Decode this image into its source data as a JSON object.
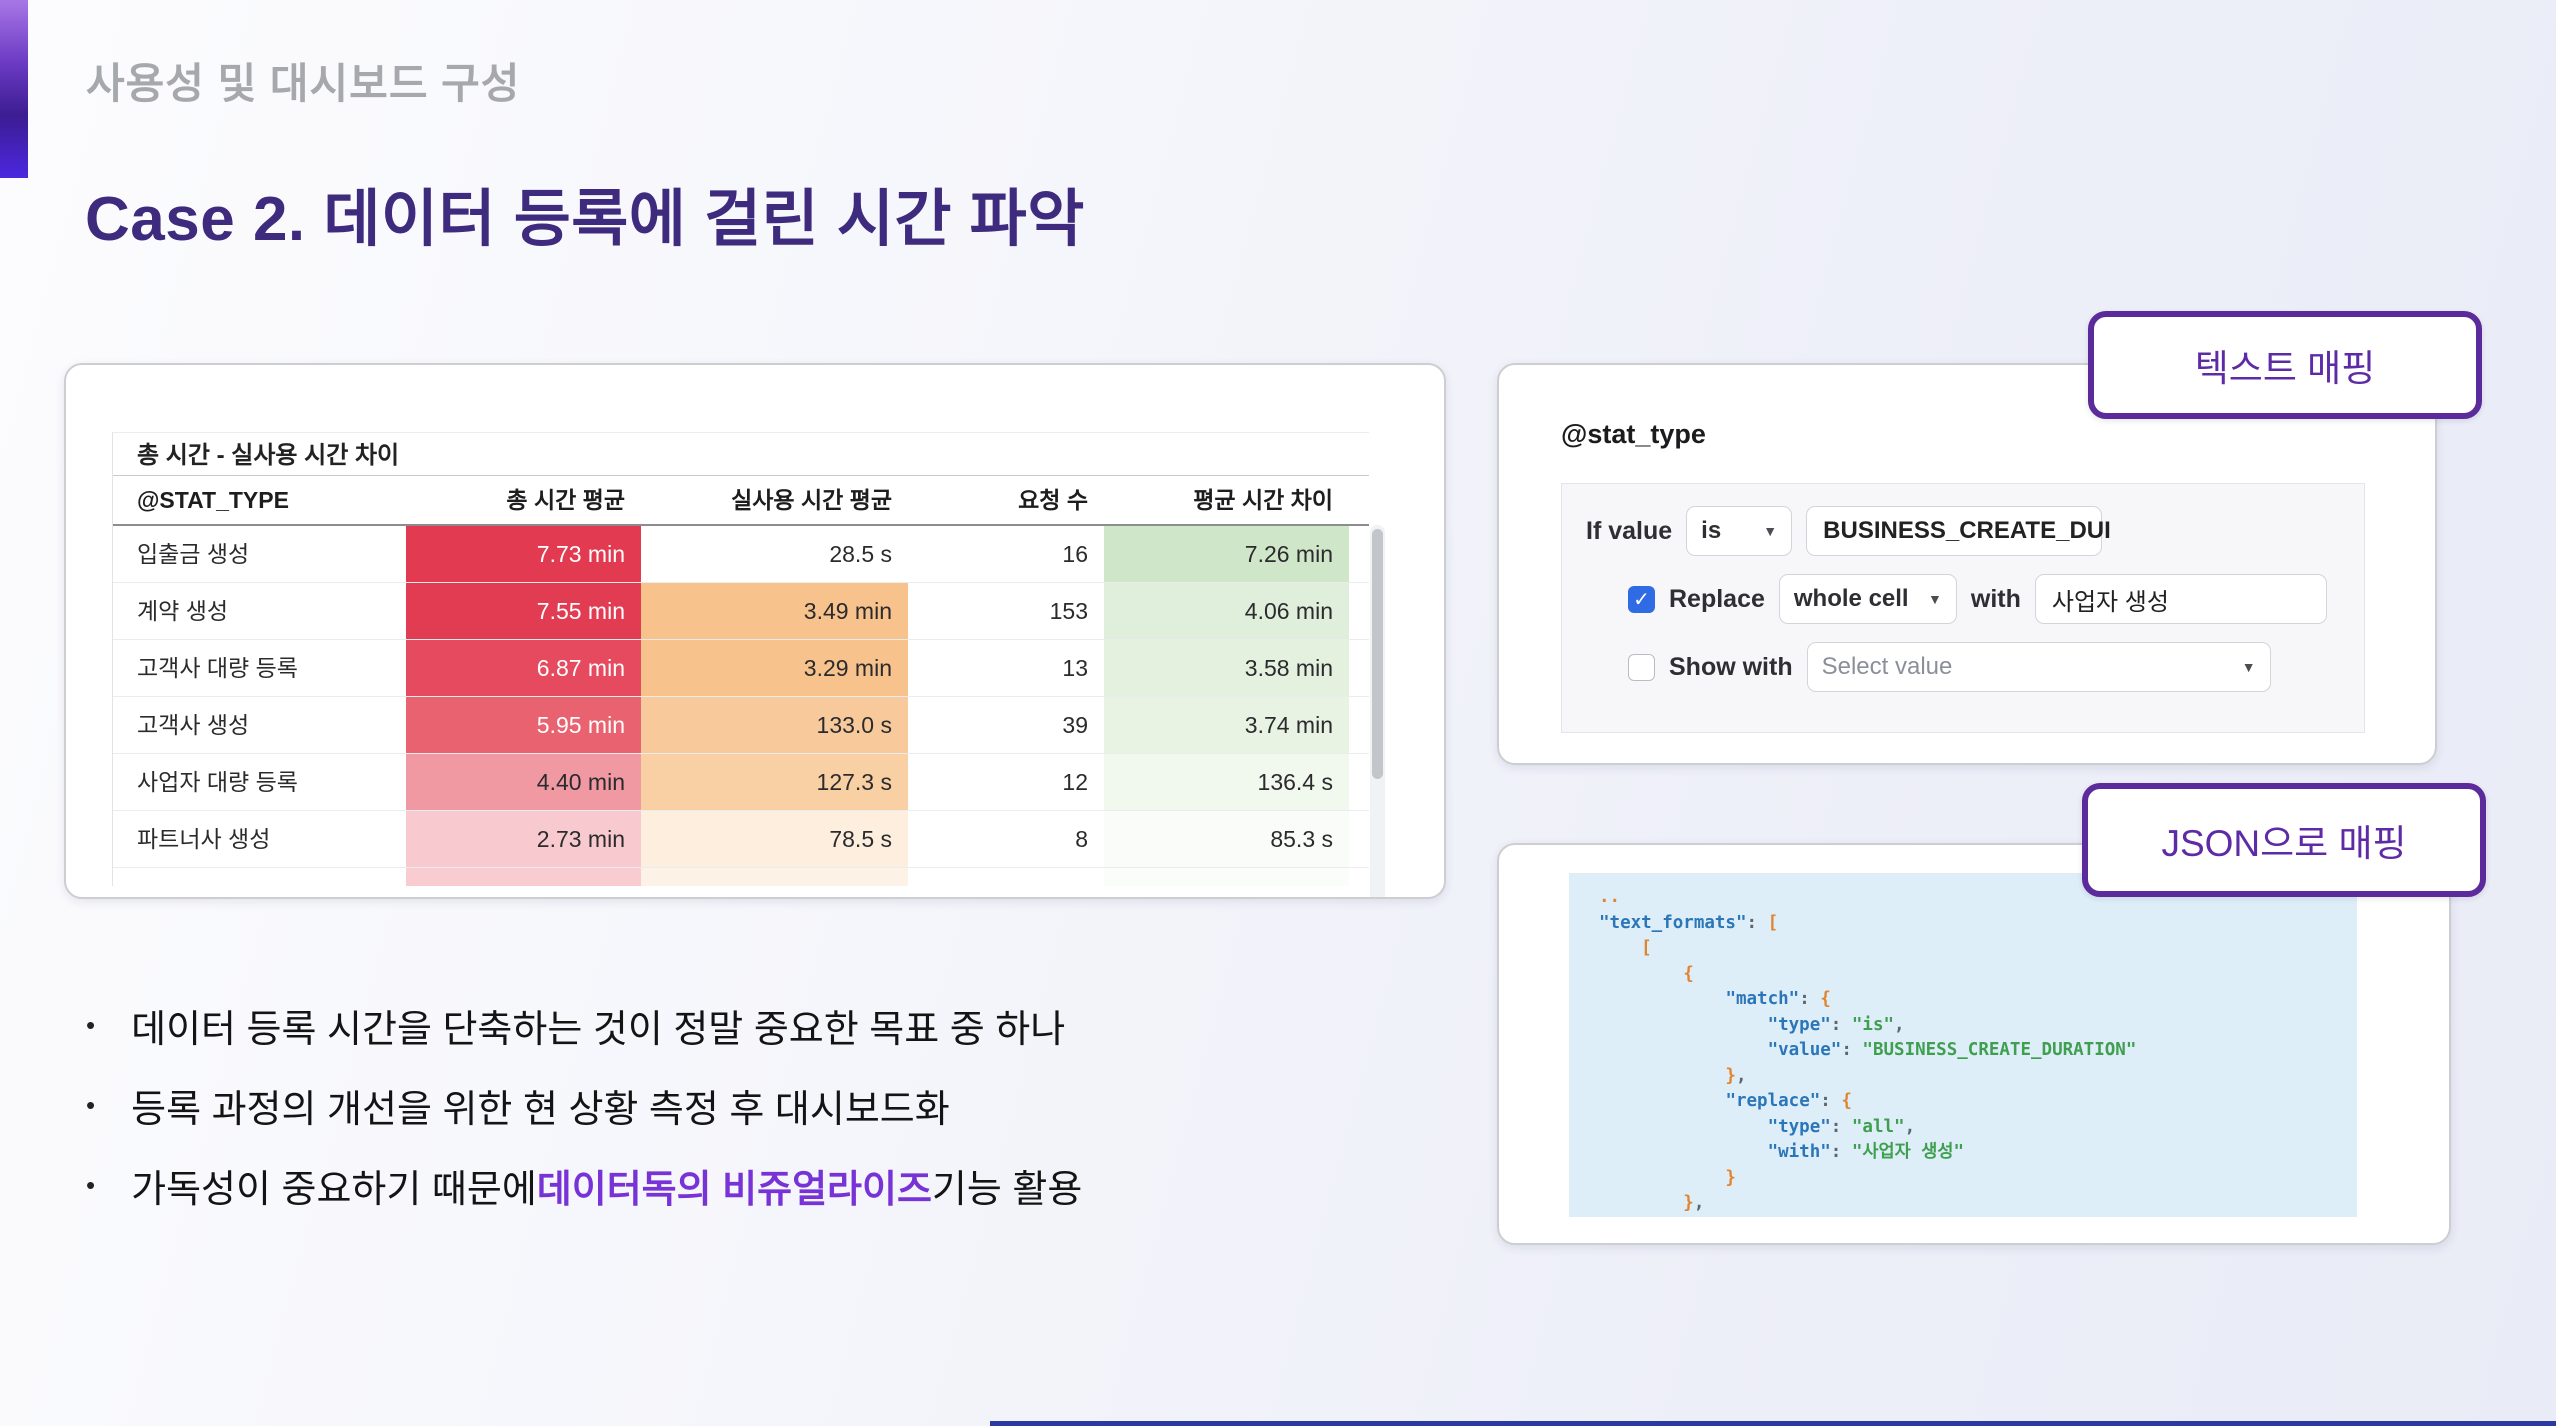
{
  "colors": {
    "accent": "#5b2a9b",
    "title": "#3e2b7e",
    "highlight": "#7733d6",
    "checkbox": "#2f6be4",
    "code_bg": "#ddeef8",
    "heat_red": "#e23a51",
    "heat_orange": "#f7c28c",
    "heat_green": "#cfe6c8"
  },
  "slide": {
    "eyebrow": "사용성 및 대시보드 구성",
    "title": "Case 2. 데이터 등록에 걸린 시간 파악"
  },
  "table_widget": {
    "title": "총 시간 - 실사용 시간 차이",
    "columns": [
      "@STAT_TYPE",
      "총 시간 평균",
      "실사용 시간 평균",
      "요청 수",
      "평균 시간 차이"
    ],
    "rows": [
      {
        "label": "입출금 생성",
        "total": "7.73 min",
        "total_bg": "#e23a51",
        "total_fg": "#ffffff",
        "actual": "28.5 s",
        "actual_bg": "#ffffff",
        "requests": "16",
        "diff": "7.26 min",
        "diff_bg": "#cfe6c8"
      },
      {
        "label": "계약 생성",
        "total": "7.55 min",
        "total_bg": "#e23c53",
        "total_fg": "#ffffff",
        "actual": "3.49 min",
        "actual_bg": "#f7c28c",
        "requests": "153",
        "diff": "4.06 min",
        "diff_bg": "#e0efdb"
      },
      {
        "label": "고객사 대량 등록",
        "total": "6.87 min",
        "total_bg": "#e54a5e",
        "total_fg": "#ffffff",
        "actual": "3.29 min",
        "actual_bg": "#f7c28c",
        "requests": "13",
        "diff": "3.58 min",
        "diff_bg": "#e4f1df"
      },
      {
        "label": "고객사 생성",
        "total": "5.95 min",
        "total_bg": "#e8636f",
        "total_fg": "#ffffff",
        "actual": "133.0 s",
        "actual_bg": "#f8ca9b",
        "requests": "39",
        "diff": "3.74 min",
        "diff_bg": "#e8f3e4"
      },
      {
        "label": "사업자 대량 등록",
        "total": "4.40 min",
        "total_bg": "#f099a3",
        "total_fg": "#2b2b2e",
        "actual": "127.3 s",
        "actual_bg": "#f9d0a4",
        "requests": "12",
        "diff": "136.4 s",
        "diff_bg": "#f1f8ee"
      },
      {
        "label": "파트너사 생성",
        "total": "2.73 min",
        "total_bg": "#f8c9cf",
        "total_fg": "#2b2b2e",
        "actual": "78.5 s",
        "actual_bg": "#fdeedd",
        "requests": "8",
        "diff": "85.3 s",
        "diff_bg": "#f9fcf8"
      }
    ],
    "partial_row": {
      "total_bg": "#f9ccd2",
      "actual_bg": "#fdf2e6",
      "diff_bg": "#fbfdfa"
    }
  },
  "chart_data": {
    "type": "table",
    "title": "총 시간 - 실사용 시간 차이",
    "columns": [
      "@STAT_TYPE",
      "총 시간 평균",
      "실사용 시간 평균",
      "요청 수",
      "평균 시간 차이"
    ],
    "rows": [
      [
        "입출금 생성",
        "7.73 min",
        "28.5 s",
        16,
        "7.26 min"
      ],
      [
        "계약 생성",
        "7.55 min",
        "3.49 min",
        153,
        "4.06 min"
      ],
      [
        "고객사 대량 등록",
        "6.87 min",
        "3.29 min",
        13,
        "3.58 min"
      ],
      [
        "고객사 생성",
        "5.95 min",
        "133.0 s",
        39,
        "3.74 min"
      ],
      [
        "사업자 대량 등록",
        "4.40 min",
        "127.3 s",
        12,
        "136.4 s"
      ],
      [
        "파트너사 생성",
        "2.73 min",
        "78.5 s",
        8,
        "85.3 s"
      ]
    ]
  },
  "badges": {
    "text_mapping": "텍스트 매핑",
    "json_mapping": "JSON으로 매핑"
  },
  "mapping_panel": {
    "field": "@stat_type",
    "if_label": "If value",
    "operator": "is",
    "value": "BUSINESS_CREATE_DUI",
    "replace_label": "Replace",
    "replace_scope": "whole cell",
    "with_label": "with",
    "replace_value": "사업자 생성",
    "show_with_label": "Show with",
    "show_with_placeholder": "Select value"
  },
  "code_block": {
    "lines": [
      [
        {
          "t": "..",
          "c": "p"
        }
      ],
      [
        {
          "t": "\"text_formats\"",
          "c": "k"
        },
        {
          "t": ": ",
          "c": "d"
        },
        {
          "t": "[",
          "c": "p"
        }
      ],
      [
        {
          "t": "    [",
          "c": "p"
        }
      ],
      [
        {
          "t": "        {",
          "c": "p"
        }
      ],
      [
        {
          "t": "            ",
          "c": "d"
        },
        {
          "t": "\"match\"",
          "c": "k"
        },
        {
          "t": ": ",
          "c": "d"
        },
        {
          "t": "{",
          "c": "p"
        }
      ],
      [
        {
          "t": "                ",
          "c": "d"
        },
        {
          "t": "\"type\"",
          "c": "k"
        },
        {
          "t": ": ",
          "c": "d"
        },
        {
          "t": "\"is\"",
          "c": "s"
        },
        {
          "t": ",",
          "c": "d"
        }
      ],
      [
        {
          "t": "                ",
          "c": "d"
        },
        {
          "t": "\"value\"",
          "c": "k"
        },
        {
          "t": ": ",
          "c": "d"
        },
        {
          "t": "\"BUSINESS_CREATE_DURATION\"",
          "c": "s"
        }
      ],
      [
        {
          "t": "            }",
          "c": "p"
        },
        {
          "t": ",",
          "c": "d"
        }
      ],
      [
        {
          "t": "            ",
          "c": "d"
        },
        {
          "t": "\"replace\"",
          "c": "k"
        },
        {
          "t": ": ",
          "c": "d"
        },
        {
          "t": "{",
          "c": "p"
        }
      ],
      [
        {
          "t": "                ",
          "c": "d"
        },
        {
          "t": "\"type\"",
          "c": "k"
        },
        {
          "t": ": ",
          "c": "d"
        },
        {
          "t": "\"all\"",
          "c": "s"
        },
        {
          "t": ",",
          "c": "d"
        }
      ],
      [
        {
          "t": "                ",
          "c": "d"
        },
        {
          "t": "\"with\"",
          "c": "k"
        },
        {
          "t": ": ",
          "c": "d"
        },
        {
          "t": "\"사업자 생성\"",
          "c": "s"
        }
      ],
      [
        {
          "t": "            }",
          "c": "p"
        }
      ],
      [
        {
          "t": "        }",
          "c": "p"
        },
        {
          "t": ",",
          "c": "d"
        }
      ]
    ]
  },
  "bullets": [
    {
      "segments": [
        {
          "t": "데이터 등록 시간을 단축하는 것이 정말 중요한 목표 중 하나",
          "hl": false
        }
      ]
    },
    {
      "segments": [
        {
          "t": "등록 과정의 개선을 위한 현 상황 측정 후 대시보드화",
          "hl": false
        }
      ]
    },
    {
      "segments": [
        {
          "t": "가독성이 중요하기 때문에 ",
          "hl": false
        },
        {
          "t": "데이터독의 비쥬얼라이즈",
          "hl": true
        },
        {
          "t": " 기능 활용",
          "hl": false
        }
      ]
    }
  ]
}
